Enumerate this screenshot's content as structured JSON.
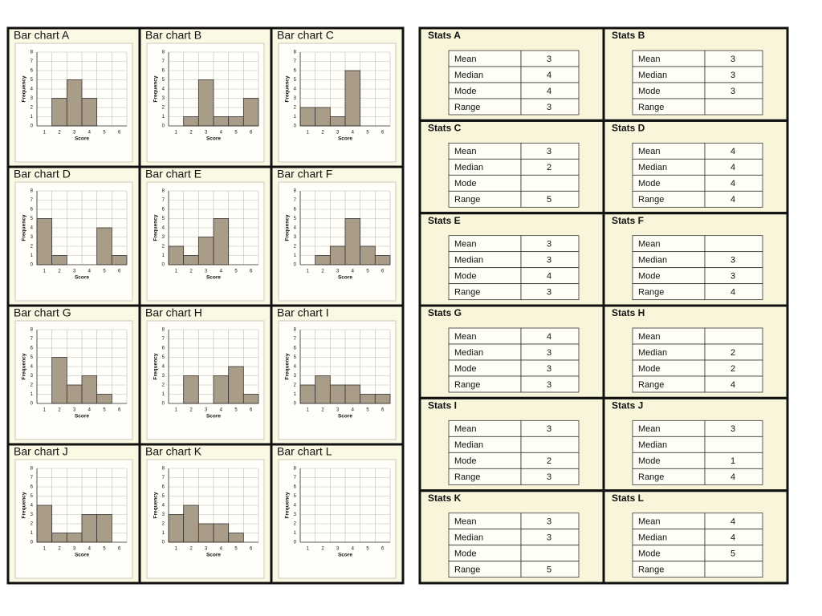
{
  "chart_data": [
    {
      "type": "bar",
      "title": "Bar chart A",
      "categories": [
        "1",
        "2",
        "3",
        "4",
        "5",
        "6"
      ],
      "values": [
        0,
        3,
        5,
        3,
        0,
        0
      ],
      "x_label": "Score",
      "y_label": "Frequency",
      "ylim": [
        0,
        8
      ],
      "yticks": [
        0,
        1,
        2,
        3,
        4,
        5,
        6,
        7,
        8
      ],
      "grid": true,
      "color": "#a99c88"
    },
    {
      "type": "bar",
      "title": "Bar chart B",
      "categories": [
        "1",
        "2",
        "3",
        "4",
        "5",
        "6"
      ],
      "values": [
        0,
        1,
        5,
        1,
        1,
        3
      ],
      "x_label": "Score",
      "y_label": "Frequency",
      "ylim": [
        0,
        8
      ],
      "yticks": [
        0,
        1,
        2,
        3,
        4,
        5,
        6,
        7,
        8
      ],
      "grid": true,
      "color": "#a99c88"
    },
    {
      "type": "bar",
      "title": "Bar chart C",
      "categories": [
        "1",
        "2",
        "3",
        "4",
        "5",
        "6"
      ],
      "values": [
        2,
        2,
        1,
        6,
        0,
        0
      ],
      "x_label": "Score",
      "y_label": "Frequency",
      "ylim": [
        0,
        8
      ],
      "yticks": [
        0,
        1,
        2,
        3,
        4,
        5,
        6,
        7,
        8
      ],
      "grid": true,
      "color": "#a99c88"
    },
    {
      "type": "bar",
      "title": "Bar chart D",
      "categories": [
        "1",
        "2",
        "3",
        "4",
        "5",
        "6"
      ],
      "values": [
        5,
        1,
        0,
        0,
        4,
        1
      ],
      "x_label": "Score",
      "y_label": "Frequency",
      "ylim": [
        0,
        8
      ],
      "yticks": [
        0,
        1,
        2,
        3,
        4,
        5,
        6,
        7,
        8
      ],
      "grid": true,
      "color": "#a99c88"
    },
    {
      "type": "bar",
      "title": "Bar chart E",
      "categories": [
        "1",
        "2",
        "3",
        "4",
        "5",
        "6"
      ],
      "values": [
        2,
        1,
        3,
        5,
        0,
        0
      ],
      "x_label": "Score",
      "y_label": "Frequency",
      "ylim": [
        0,
        8
      ],
      "yticks": [
        0,
        1,
        2,
        3,
        4,
        5,
        6,
        7,
        8
      ],
      "grid": true,
      "color": "#a99c88"
    },
    {
      "type": "bar",
      "title": "Bar chart F",
      "categories": [
        "1",
        "2",
        "3",
        "4",
        "5",
        "6"
      ],
      "values": [
        0,
        1,
        2,
        5,
        2,
        1
      ],
      "x_label": "Score",
      "y_label": "Frequency",
      "ylim": [
        0,
        8
      ],
      "yticks": [
        0,
        1,
        2,
        3,
        4,
        5,
        6,
        7,
        8
      ],
      "grid": true,
      "color": "#a99c88"
    },
    {
      "type": "bar",
      "title": "Bar chart G",
      "categories": [
        "1",
        "2",
        "3",
        "4",
        "5",
        "6"
      ],
      "values": [
        0,
        5,
        2,
        3,
        1,
        0
      ],
      "x_label": "Score",
      "y_label": "Frequency",
      "ylim": [
        0,
        8
      ],
      "yticks": [
        0,
        1,
        2,
        3,
        4,
        5,
        6,
        7,
        8
      ],
      "grid": true,
      "color": "#a99c88"
    },
    {
      "type": "bar",
      "title": "Bar chart H",
      "categories": [
        "1",
        "2",
        "3",
        "4",
        "5",
        "6"
      ],
      "values": [
        0,
        3,
        0,
        3,
        4,
        1
      ],
      "x_label": "Score",
      "y_label": "Frequency",
      "ylim": [
        0,
        8
      ],
      "yticks": [
        0,
        1,
        2,
        3,
        4,
        5,
        6,
        7,
        8
      ],
      "grid": true,
      "color": "#a99c88"
    },
    {
      "type": "bar",
      "title": "Bar chart I",
      "categories": [
        "1",
        "2",
        "3",
        "4",
        "5",
        "6"
      ],
      "values": [
        2,
        3,
        2,
        2,
        1,
        1
      ],
      "x_label": "Score",
      "y_label": "Frequency",
      "ylim": [
        0,
        8
      ],
      "yticks": [
        0,
        1,
        2,
        3,
        4,
        5,
        6,
        7,
        8
      ],
      "grid": true,
      "color": "#a99c88"
    },
    {
      "type": "bar",
      "title": "Bar chart J",
      "categories": [
        "1",
        "2",
        "3",
        "4",
        "5",
        "6"
      ],
      "values": [
        4,
        1,
        1,
        3,
        3,
        0
      ],
      "x_label": "Score",
      "y_label": "Frequency",
      "ylim": [
        0,
        8
      ],
      "yticks": [
        0,
        1,
        2,
        3,
        4,
        5,
        6,
        7,
        8
      ],
      "grid": true,
      "color": "#a99c88"
    },
    {
      "type": "bar",
      "title": "Bar chart K",
      "categories": [
        "1",
        "2",
        "3",
        "4",
        "5",
        "6"
      ],
      "values": [
        3,
        4,
        2,
        2,
        1,
        0
      ],
      "x_label": "Score",
      "y_label": "Frequency",
      "ylim": [
        0,
        8
      ],
      "yticks": [
        0,
        1,
        2,
        3,
        4,
        5,
        6,
        7,
        8
      ],
      "grid": true,
      "color": "#a99c88"
    },
    {
      "type": "bar",
      "title": "Bar chart L",
      "categories": [
        "1",
        "2",
        "3",
        "4",
        "5",
        "6"
      ],
      "values": [
        null,
        null,
        null,
        null,
        null,
        null
      ],
      "x_label": "Score",
      "y_label": "Frequency",
      "ylim": [
        0,
        8
      ],
      "yticks": [
        0,
        1,
        2,
        3,
        4,
        5,
        6,
        7,
        8
      ],
      "grid": true,
      "color": "#a99c88"
    }
  ],
  "stats": [
    {
      "title": "Stats A",
      "rows": [
        {
          "label": "Mean",
          "value": 3
        },
        {
          "label": "Median",
          "value": 4
        },
        {
          "label": "Mode",
          "value": 4
        },
        {
          "label": "Range",
          "value": 3
        }
      ]
    },
    {
      "title": "Stats B",
      "rows": [
        {
          "label": "Mean",
          "value": 3
        },
        {
          "label": "Median",
          "value": 3
        },
        {
          "label": "Mode",
          "value": 3
        },
        {
          "label": "Range",
          "value": null
        }
      ]
    },
    {
      "title": "Stats C",
      "rows": [
        {
          "label": "Mean",
          "value": 3
        },
        {
          "label": "Median",
          "value": 2
        },
        {
          "label": "Mode",
          "value": null
        },
        {
          "label": "Range",
          "value": 5
        }
      ]
    },
    {
      "title": "Stats D",
      "rows": [
        {
          "label": "Mean",
          "value": 4
        },
        {
          "label": "Median",
          "value": 4
        },
        {
          "label": "Mode",
          "value": 4
        },
        {
          "label": "Range",
          "value": 4
        }
      ]
    },
    {
      "title": "Stats E",
      "rows": [
        {
          "label": "Mean",
          "value": 3
        },
        {
          "label": "Median",
          "value": 3
        },
        {
          "label": "Mode",
          "value": 4
        },
        {
          "label": "Range",
          "value": 3
        }
      ]
    },
    {
      "title": "Stats F",
      "rows": [
        {
          "label": "Mean",
          "value": null
        },
        {
          "label": "Median",
          "value": 3
        },
        {
          "label": "Mode",
          "value": 3
        },
        {
          "label": "Range",
          "value": 4
        }
      ]
    },
    {
      "title": "Stats G",
      "rows": [
        {
          "label": "Mean",
          "value": 4
        },
        {
          "label": "Median",
          "value": 3
        },
        {
          "label": "Mode",
          "value": 3
        },
        {
          "label": "Range",
          "value": 3
        }
      ]
    },
    {
      "title": "Stats H",
      "rows": [
        {
          "label": "Mean",
          "value": null
        },
        {
          "label": "Median",
          "value": 2
        },
        {
          "label": "Mode",
          "value": 2
        },
        {
          "label": "Range",
          "value": 4
        }
      ]
    },
    {
      "title": "Stats I",
      "rows": [
        {
          "label": "Mean",
          "value": 3
        },
        {
          "label": "Median",
          "value": null
        },
        {
          "label": "Mode",
          "value": 2
        },
        {
          "label": "Range",
          "value": 3
        }
      ]
    },
    {
      "title": "Stats J",
      "rows": [
        {
          "label": "Mean",
          "value": 3
        },
        {
          "label": "Median",
          "value": null
        },
        {
          "label": "Mode",
          "value": 1
        },
        {
          "label": "Range",
          "value": 4
        }
      ]
    },
    {
      "title": "Stats K",
      "rows": [
        {
          "label": "Mean",
          "value": 3
        },
        {
          "label": "Median",
          "value": 3
        },
        {
          "label": "Mode",
          "value": null
        },
        {
          "label": "Range",
          "value": 5
        }
      ]
    },
    {
      "title": "Stats L",
      "rows": [
        {
          "label": "Mean",
          "value": 4
        },
        {
          "label": "Median",
          "value": 4
        },
        {
          "label": "Mode",
          "value": 5
        },
        {
          "label": "Range",
          "value": null
        }
      ]
    }
  ]
}
